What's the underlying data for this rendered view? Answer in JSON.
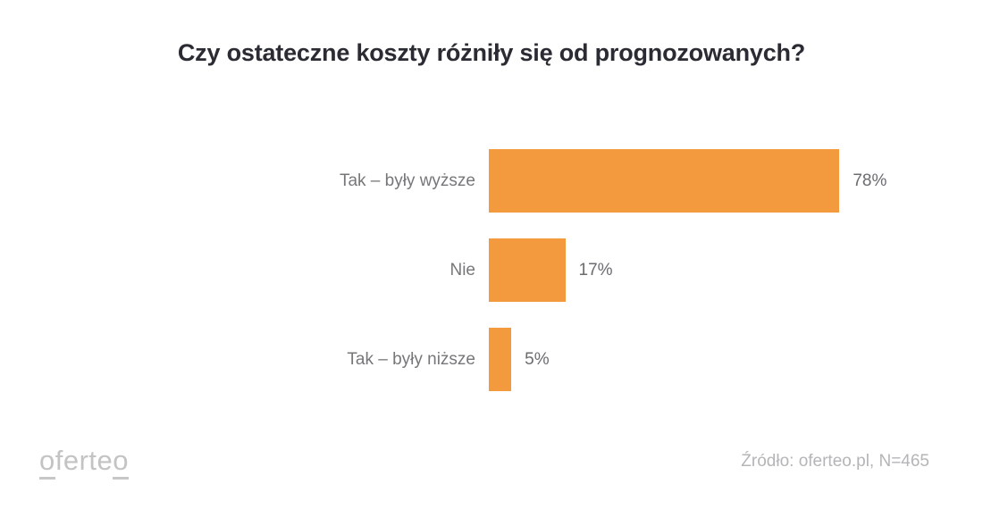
{
  "title": "Czy ostateczne koszty różniły się od prognozowanych?",
  "chart_data": {
    "type": "bar",
    "orientation": "horizontal",
    "title": "Czy ostateczne koszty różniły się od prognozowanych?",
    "categories": [
      "Tak – były wyższe",
      "Nie",
      "Tak – były niższe"
    ],
    "values": [
      78,
      17,
      5
    ],
    "value_labels": [
      "78%",
      "17%",
      "5%"
    ],
    "xlabel": "",
    "ylabel": "",
    "xlim": [
      0,
      100
    ],
    "grid": false,
    "legend": false,
    "bar_color": "#F3993E"
  },
  "chart": {
    "bars": [
      {
        "label": "Tak – były wyższe",
        "value": 78,
        "value_label": "78%"
      },
      {
        "label": "Nie",
        "value": 17,
        "value_label": "17%"
      },
      {
        "label": "Tak – były niższe",
        "value": 5,
        "value_label": "5%"
      }
    ]
  },
  "footer": {
    "logo_parts": [
      "o",
      "ferte",
      "o"
    ],
    "source": "Źródło: oferteo.pl, N=465"
  },
  "colors": {
    "bar": "#F3993E",
    "title": "#2B2B33",
    "category_label": "#77777A",
    "value_label": "#6B6B70",
    "logo": "#C3C3C3",
    "source": "#B5B5B7"
  }
}
